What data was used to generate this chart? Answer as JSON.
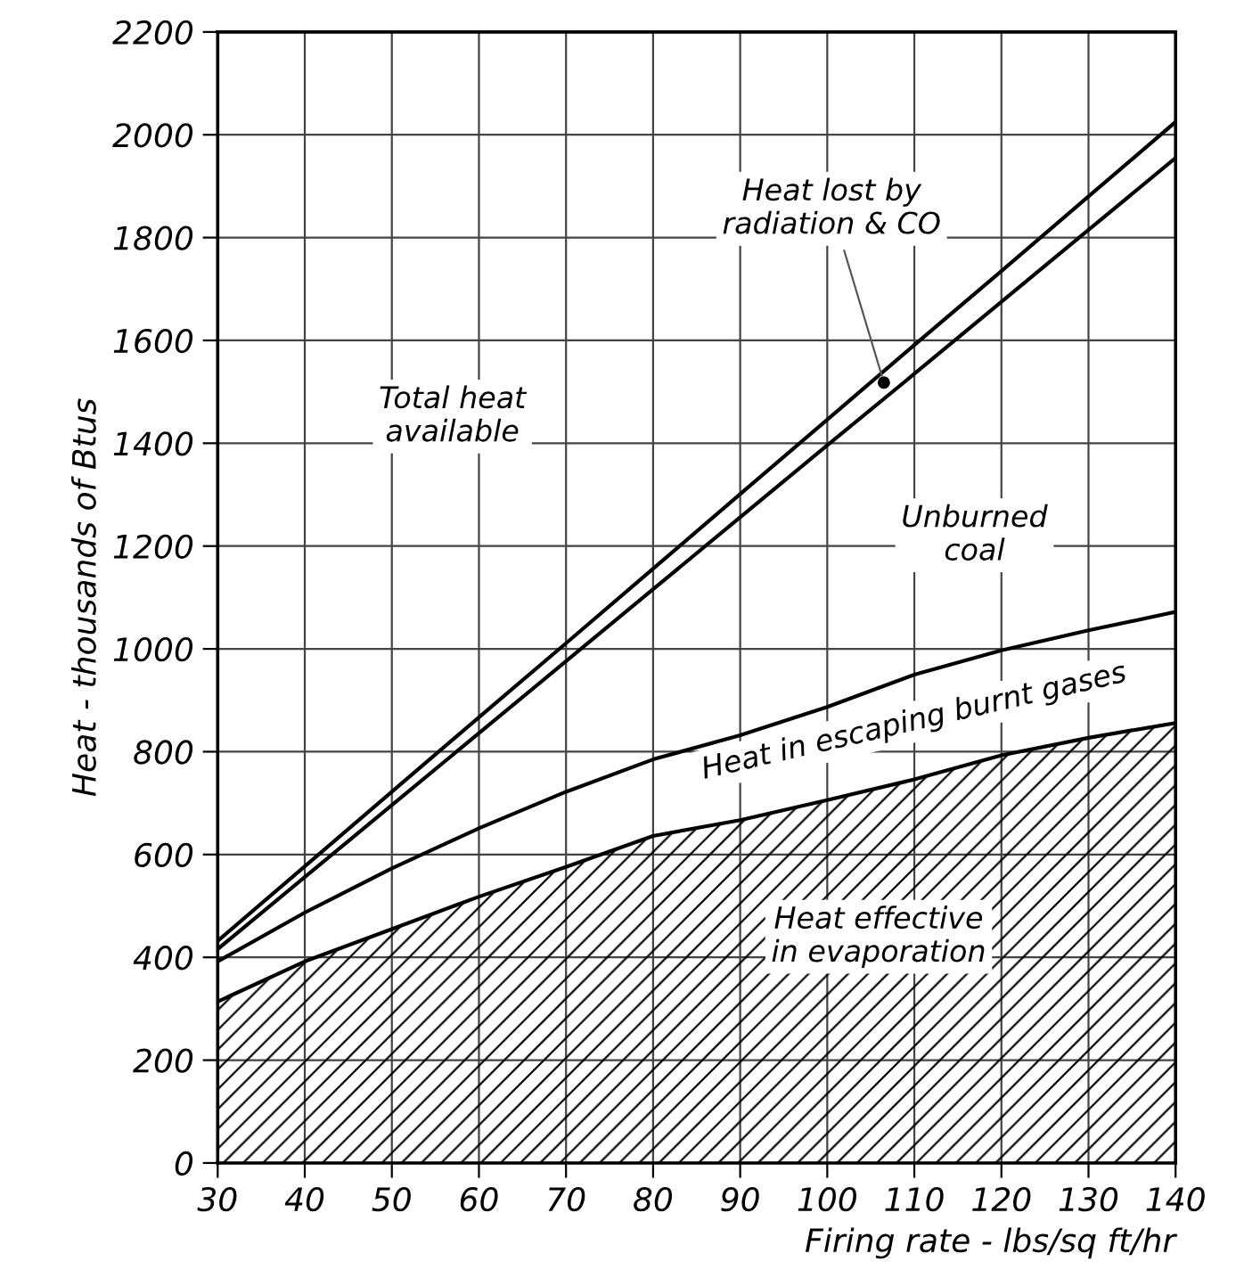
{
  "chart_data": {
    "type": "line",
    "xlabel": "Firing rate - lbs/sq ft/hr",
    "ylabel": "Heat - thousands of Btus",
    "x": [
      30,
      40,
      50,
      60,
      70,
      80,
      90,
      100,
      110,
      120,
      130,
      140
    ],
    "series": [
      {
        "color": "#000000",
        "values": [
          432,
          577,
          722,
          867,
          1011,
          1156,
          1301,
          1446,
          1591,
          1735,
          1880,
          2025
        ]
      },
      {
        "color": "#000000",
        "values": [
          416,
          556,
          696,
          836,
          976,
          1116,
          1256,
          1396,
          1535,
          1675,
          1815,
          1955
        ]
      },
      {
        "color": "#000000",
        "values": [
          392,
          487,
          573,
          651,
          722,
          785,
          832,
          887,
          950,
          997,
          1036,
          1072
        ]
      },
      {
        "type": "area",
        "color": "#000000",
        "values": [
          314,
          392,
          455,
          518,
          576,
          636,
          667,
          706,
          746,
          793,
          827,
          856
        ]
      }
    ],
    "xlim": [
      30,
      140
    ],
    "ylim": [
      0,
      2200
    ],
    "xticks": [
      30,
      40,
      50,
      60,
      70,
      80,
      90,
      100,
      110,
      120,
      130,
      140
    ],
    "yticks": [
      0,
      200,
      400,
      600,
      800,
      1000,
      1200,
      1400,
      1600,
      1800,
      2000,
      2200
    ],
    "grid": true,
    "annotations": [
      {
        "text": "Heat lost by\nradiation & CO",
        "x": 106.5,
        "y": 1518
      },
      "Total heat\navailable",
      "Unburned\ncoal",
      "Heat in escaping burnt gases",
      "Heat effective\nin evaporation"
    ]
  }
}
